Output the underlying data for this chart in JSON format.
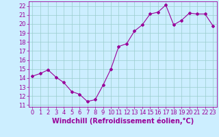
{
  "x": [
    0,
    1,
    2,
    3,
    4,
    5,
    6,
    7,
    8,
    9,
    10,
    11,
    12,
    13,
    14,
    15,
    16,
    17,
    18,
    19,
    20,
    21,
    22,
    23
  ],
  "y": [
    14.2,
    14.5,
    14.9,
    14.1,
    13.5,
    12.5,
    12.2,
    11.4,
    11.6,
    13.2,
    15.0,
    17.5,
    17.8,
    19.2,
    19.9,
    21.1,
    21.3,
    22.1,
    19.9,
    20.4,
    21.2,
    21.1,
    21.1,
    19.8
  ],
  "line_color": "#990099",
  "marker": "D",
  "marker_size": 2.0,
  "bg_color": "#cceeff",
  "grid_color": "#99cccc",
  "xlabel": "Windchill (Refroidissement éolien,°C)",
  "xlabel_color": "#990099",
  "xlabel_fontsize": 7,
  "tick_color": "#990099",
  "tick_fontsize": 6,
  "ylim": [
    10.8,
    22.5
  ],
  "xlim": [
    -0.5,
    23.5
  ],
  "yticks": [
    11,
    12,
    13,
    14,
    15,
    16,
    17,
    18,
    19,
    20,
    21,
    22
  ],
  "xticks": [
    0,
    1,
    2,
    3,
    4,
    5,
    6,
    7,
    8,
    9,
    10,
    11,
    12,
    13,
    14,
    15,
    16,
    17,
    18,
    19,
    20,
    21,
    22,
    23
  ]
}
